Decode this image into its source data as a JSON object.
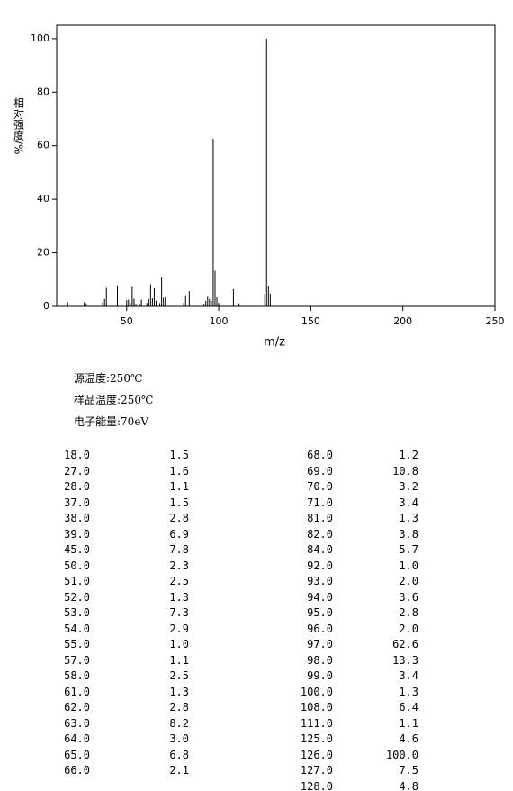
{
  "chart_data": {
    "type": "bar",
    "x_label": "m/z",
    "y_label": "相对强度/%",
    "x": [
      18,
      27,
      28,
      37,
      38,
      39,
      45,
      50,
      51,
      52,
      53,
      54,
      55,
      57,
      58,
      61,
      62,
      63,
      64,
      65,
      66,
      68,
      69,
      70,
      71,
      81,
      82,
      84,
      92,
      93,
      94,
      95,
      96,
      97,
      98,
      99,
      100,
      108,
      111,
      125,
      126,
      127,
      128
    ],
    "values": [
      1.5,
      1.6,
      1.1,
      1.5,
      2.8,
      6.9,
      7.8,
      2.3,
      2.5,
      1.3,
      7.3,
      2.9,
      1.0,
      1.1,
      2.5,
      1.3,
      2.8,
      8.2,
      3.0,
      6.8,
      2.1,
      1.2,
      10.8,
      3.2,
      3.4,
      1.3,
      3.8,
      5.7,
      1.0,
      2.0,
      3.6,
      2.8,
      2.0,
      62.6,
      13.3,
      3.4,
      1.3,
      6.4,
      1.1,
      4.6,
      100.0,
      7.5,
      4.8
    ],
    "color": "#000000",
    "xlim": [
      12,
      250
    ],
    "xticks": [
      50,
      100,
      150,
      200,
      250
    ],
    "ylim": [
      0,
      105
    ],
    "yticks": [
      0,
      20,
      40,
      60,
      80,
      100
    ]
  },
  "info": [
    "源温度:250℃",
    "样品温度:250℃",
    "电子能量:70eV"
  ],
  "table": {
    "left": [
      [
        "18.0",
        "1.5"
      ],
      [
        "27.0",
        "1.6"
      ],
      [
        "28.0",
        "1.1"
      ],
      [
        "37.0",
        "1.5"
      ],
      [
        "38.0",
        "2.8"
      ],
      [
        "39.0",
        "6.9"
      ],
      [
        "45.0",
        "7.8"
      ],
      [
        "50.0",
        "2.3"
      ],
      [
        "51.0",
        "2.5"
      ],
      [
        "52.0",
        "1.3"
      ],
      [
        "53.0",
        "7.3"
      ],
      [
        "54.0",
        "2.9"
      ],
      [
        "55.0",
        "1.0"
      ],
      [
        "57.0",
        "1.1"
      ],
      [
        "58.0",
        "2.5"
      ],
      [
        "61.0",
        "1.3"
      ],
      [
        "62.0",
        "2.8"
      ],
      [
        "63.0",
        "8.2"
      ],
      [
        "64.0",
        "3.0"
      ],
      [
        "65.0",
        "6.8"
      ],
      [
        "66.0",
        "2.1"
      ]
    ],
    "right": [
      [
        "68.0",
        "1.2"
      ],
      [
        "69.0",
        "10.8"
      ],
      [
        "70.0",
        "3.2"
      ],
      [
        "71.0",
        "3.4"
      ],
      [
        "81.0",
        "1.3"
      ],
      [
        "82.0",
        "3.8"
      ],
      [
        "84.0",
        "5.7"
      ],
      [
        "92.0",
        "1.0"
      ],
      [
        "93.0",
        "2.0"
      ],
      [
        "94.0",
        "3.6"
      ],
      [
        "95.0",
        "2.8"
      ],
      [
        "96.0",
        "2.0"
      ],
      [
        "97.0",
        "62.6"
      ],
      [
        "98.0",
        "13.3"
      ],
      [
        "99.0",
        "3.4"
      ],
      [
        "100.0",
        "1.3"
      ],
      [
        "108.0",
        "6.4"
      ],
      [
        "111.0",
        "1.1"
      ],
      [
        "125.0",
        "4.6"
      ],
      [
        "126.0",
        "100.0"
      ],
      [
        "127.0",
        "7.5"
      ],
      [
        "128.0",
        "4.8"
      ]
    ]
  }
}
